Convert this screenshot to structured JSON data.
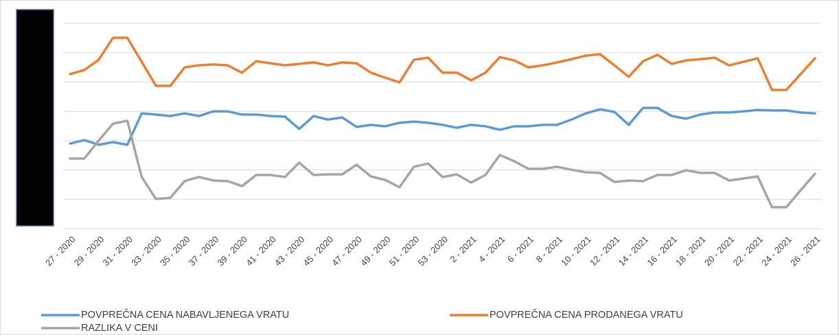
{
  "chart_data": {
    "type": "line",
    "categories": [
      "27 - 2020",
      null,
      "29 - 2020",
      null,
      "31 - 2020",
      null,
      "33 - 2020",
      null,
      "35 - 2020",
      null,
      "37 - 2020",
      null,
      "39 - 2020",
      null,
      "41 - 2020",
      null,
      "43 - 2020",
      null,
      "45 - 2020",
      null,
      "47 - 2020",
      null,
      "49 - 2020",
      null,
      "51 - 2020",
      null,
      "53 - 2020",
      null,
      "2 - 2021",
      null,
      "4 - 2021",
      null,
      "6 - 2021",
      null,
      "8 - 2021",
      null,
      "10 - 2021",
      null,
      "12 - 2021",
      null,
      "14 - 2021",
      null,
      "16 - 2021",
      null,
      "18 - 2021",
      null,
      "20 - 2021",
      null,
      "22 - 2021",
      null,
      "24 - 2021",
      null,
      "26 - 2021"
    ],
    "series": [
      {
        "name": "POVPREČNA CENA NABAVLJENEGA VRATU",
        "color": "#5b9bd5",
        "values": [
          2.9,
          3.02,
          2.86,
          2.95,
          2.86,
          3.93,
          3.89,
          3.84,
          3.93,
          3.84,
          4.0,
          4.0,
          3.89,
          3.89,
          3.84,
          3.82,
          3.4,
          3.84,
          3.72,
          3.79,
          3.47,
          3.54,
          3.49,
          3.61,
          3.65,
          3.61,
          3.54,
          3.44,
          3.54,
          3.49,
          3.37,
          3.49,
          3.49,
          3.54,
          3.54,
          3.72,
          3.93,
          4.07,
          3.98,
          3.54,
          4.12,
          4.12,
          3.84,
          3.75,
          3.89,
          3.96,
          3.96,
          4.0,
          4.05,
          4.03,
          4.03,
          3.96,
          3.93
        ]
      },
      {
        "name": "POVPREČNA CENA PRODANEGA VRATU",
        "color": "#ed7d31",
        "values": [
          5.27,
          5.41,
          5.76,
          6.51,
          6.51,
          5.69,
          4.87,
          4.87,
          5.5,
          5.57,
          5.6,
          5.57,
          5.32,
          5.71,
          5.64,
          5.57,
          5.62,
          5.67,
          5.57,
          5.67,
          5.64,
          5.32,
          5.15,
          4.99,
          5.76,
          5.83,
          5.32,
          5.32,
          5.06,
          5.32,
          5.85,
          5.74,
          5.5,
          5.57,
          5.67,
          5.78,
          5.9,
          5.95,
          5.57,
          5.18,
          5.71,
          5.93,
          5.62,
          5.74,
          5.78,
          5.83,
          5.57,
          5.69,
          5.81,
          4.73,
          4.73,
          5.27,
          5.81
        ]
      },
      {
        "name": "RAZLIKA V CENI",
        "color": "#a5a5a5",
        "values": [
          2.39,
          2.39,
          3.0,
          3.58,
          3.68,
          1.76,
          1.01,
          1.05,
          1.62,
          1.76,
          1.64,
          1.62,
          1.45,
          1.83,
          1.83,
          1.76,
          2.25,
          1.83,
          1.85,
          1.85,
          2.18,
          1.78,
          1.66,
          1.41,
          2.11,
          2.22,
          1.76,
          1.85,
          1.57,
          1.83,
          2.51,
          2.3,
          2.04,
          2.04,
          2.11,
          2.01,
          1.92,
          1.9,
          1.59,
          1.64,
          1.62,
          1.83,
          1.83,
          1.99,
          1.9,
          1.9,
          1.64,
          1.71,
          1.78,
          0.73,
          0.73,
          1.31,
          1.87
        ]
      }
    ],
    "ylim": [
      0,
      7
    ],
    "yticks": [
      0,
      1,
      2,
      3,
      4,
      5,
      6,
      7
    ],
    "grid": true,
    "legend": "bottom"
  }
}
